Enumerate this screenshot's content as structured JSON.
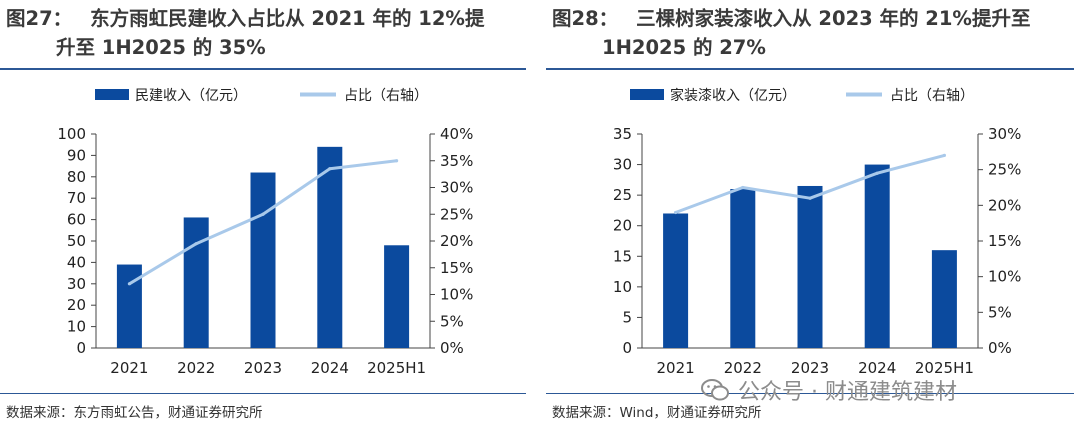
{
  "charts": [
    {
      "figure_number": "图27：",
      "title_line1": "东方雨虹民建收入占比从 2021 年的 12%提",
      "title_line2": "升至 1H2025 的 35%",
      "source": "数据来源：东方雨虹公告，财通证券研究所",
      "legend_bar": "民建收入（亿元）",
      "legend_line": "占比（右轴）",
      "left_ticks": [
        "0",
        "10",
        "20",
        "30",
        "40",
        "50",
        "60",
        "70",
        "80",
        "90",
        "100"
      ],
      "right_ticks": [
        "0%",
        "5%",
        "10%",
        "15%",
        "20%",
        "25%",
        "30%",
        "35%",
        "40%"
      ]
    },
    {
      "figure_number": "图28：",
      "title_line1": "三棵树家装漆收入从 2023 年的 21%提升至",
      "title_line2": "1H2025 的 27%",
      "source": "数据来源：Wind，财通证券研究所",
      "legend_bar": "家装漆收入（亿元）",
      "legend_line": "占比（右轴）",
      "left_ticks": [
        "0",
        "5",
        "10",
        "15",
        "20",
        "25",
        "30",
        "35"
      ],
      "right_ticks": [
        "0%",
        "5%",
        "10%",
        "15%",
        "20%",
        "25%",
        "30%"
      ]
    }
  ],
  "chart_data": [
    {
      "type": "bar",
      "categories": [
        "2021",
        "2022",
        "2023",
        "2024",
        "2025H1"
      ],
      "series": [
        {
          "name": "民建收入（亿元）",
          "type": "bar",
          "axis": "left",
          "values": [
            39,
            61,
            82,
            94,
            48
          ]
        },
        {
          "name": "占比（右轴）",
          "type": "line",
          "axis": "right",
          "values": [
            12,
            19.5,
            25,
            33.5,
            35
          ],
          "unit": "%"
        }
      ],
      "ylim": [
        0,
        100
      ],
      "y2lim": [
        0,
        40
      ],
      "legend_position": "top"
    },
    {
      "type": "bar",
      "categories": [
        "2021",
        "2022",
        "2023",
        "2024",
        "2025H1"
      ],
      "series": [
        {
          "name": "家装漆收入（亿元）",
          "type": "bar",
          "axis": "left",
          "values": [
            22,
            26,
            26.5,
            30,
            16
          ]
        },
        {
          "name": "占比（右轴）",
          "type": "line",
          "axis": "right",
          "values": [
            19,
            22.5,
            21,
            24.5,
            27
          ],
          "unit": "%"
        }
      ],
      "ylim": [
        0,
        35
      ],
      "y2lim": [
        0,
        30
      ],
      "legend_position": "top"
    }
  ],
  "colors": {
    "bar": "#0b4a9e",
    "line": "#a9c9ea",
    "axis": "#444444",
    "rule": "#2c5896"
  },
  "watermark": {
    "text": "公众号 · 财通建筑建材"
  }
}
